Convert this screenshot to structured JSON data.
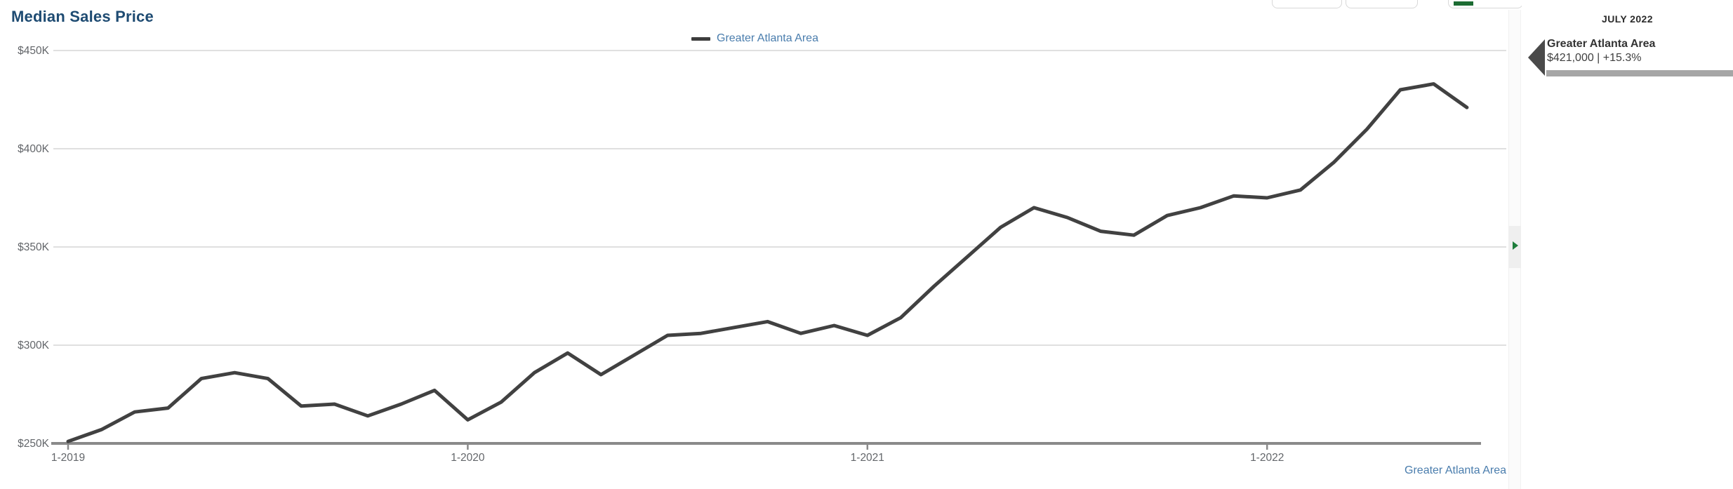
{
  "header": {
    "title": "Median Sales Price"
  },
  "toolbar": {
    "buttons": [
      {
        "id": "toolbar-button-1",
        "icon": "none"
      },
      {
        "id": "toolbar-button-2",
        "icon": "none"
      },
      {
        "id": "toolbar-button-3",
        "icon": "green-bar-icon"
      },
      {
        "id": "toolbar-button-4",
        "icon": "green-glyph-icon"
      },
      {
        "id": "toolbar-button-5",
        "icon": "gray-glyph-icon"
      }
    ]
  },
  "legend": {
    "series_label": "Greater Atlanta Area",
    "swatch_color": "#3d3d3d"
  },
  "colors": {
    "title": "#1e4b72",
    "line": "#414141",
    "link_blue": "#4a7dad",
    "axis": "#8a8a8a",
    "gridline": "#d6d6d6",
    "green_accent": "#1d7d3b",
    "panel_bar": "#a6a6a6",
    "panel_marker": "#4a4a4a"
  },
  "chart_data": {
    "type": "line",
    "title": "Median Sales Price",
    "series_name": "Greater Atlanta Area",
    "unit": "USD thousands",
    "grid": "horizontal",
    "legend_position": "top-center",
    "ylim": [
      250,
      450
    ],
    "x": [
      "1-2019",
      "2-2019",
      "3-2019",
      "4-2019",
      "5-2019",
      "6-2019",
      "7-2019",
      "8-2019",
      "9-2019",
      "10-2019",
      "11-2019",
      "12-2019",
      "1-2020",
      "2-2020",
      "3-2020",
      "4-2020",
      "5-2020",
      "6-2020",
      "7-2020",
      "8-2020",
      "9-2020",
      "10-2020",
      "11-2020",
      "12-2020",
      "1-2021",
      "2-2021",
      "3-2021",
      "4-2021",
      "5-2021",
      "6-2021",
      "7-2021",
      "8-2021",
      "9-2021",
      "10-2021",
      "11-2021",
      "12-2021",
      "1-2022",
      "2-2022",
      "3-2022",
      "4-2022",
      "5-2022",
      "6-2022",
      "7-2022"
    ],
    "values": [
      251,
      257,
      266,
      268,
      283,
      286,
      283,
      269,
      270,
      264,
      270,
      277,
      262,
      271,
      286,
      296,
      285,
      295,
      305,
      306,
      309,
      312,
      306,
      310,
      305,
      314,
      330,
      345,
      360,
      370,
      365,
      358,
      356,
      366,
      370,
      376,
      375,
      379,
      393,
      410,
      430,
      433,
      421
    ],
    "y_ticks": [
      {
        "label": "$450K",
        "value": 450
      },
      {
        "label": "$400K",
        "value": 400
      },
      {
        "label": "$350K",
        "value": 350
      },
      {
        "label": "$300K",
        "value": 300
      },
      {
        "label": "$250K",
        "value": 250
      }
    ],
    "x_ticks": [
      {
        "label": "1-2019",
        "index": 0
      },
      {
        "label": "1-2020",
        "index": 12
      },
      {
        "label": "1-2021",
        "index": 24
      },
      {
        "label": "1-2022",
        "index": 36
      }
    ]
  },
  "side_panel": {
    "header": "JULY 2022",
    "entry": {
      "name": "Greater Atlanta Area",
      "value": "$421,000",
      "change": "+15.3%",
      "display": "$421,000 | +15.3%"
    }
  },
  "footer": {
    "link_label": "Greater Atlanta Area"
  }
}
